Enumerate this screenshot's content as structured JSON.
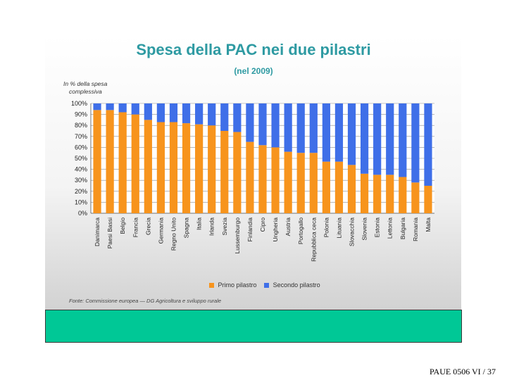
{
  "chart_data": {
    "type": "bar",
    "stacked": true,
    "title": "Spesa della PAC nei due pilastri",
    "subtitle": "(nel 2009)",
    "ylabel_lines": [
      "In % della spesa",
      "complessiva"
    ],
    "ylim": [
      0,
      100
    ],
    "yticks": [
      "0%",
      "10%",
      "20%",
      "30%",
      "40%",
      "50%",
      "60%",
      "70%",
      "80%",
      "90%",
      "100%"
    ],
    "categories": [
      "Danimarca",
      "Paesi Bassi",
      "Belgio",
      "Francia",
      "Grecia",
      "Germania",
      "Regno Unito",
      "Spagna",
      "Italia",
      "Irlanda",
      "Svezia",
      "Lussemburgo",
      "Finlandia",
      "Cipro",
      "Ungheria",
      "Austria",
      "Portogallo",
      "Repubblica ceca",
      "Polonia",
      "Lituania",
      "Slovacchia",
      "Slovenia",
      "Estonia",
      "Lettonia",
      "Bulgaria",
      "Romania",
      "Malta"
    ],
    "series": [
      {
        "name": "Primo pilastro",
        "color": "#f7941d",
        "values": [
          94,
          94,
          92,
          90,
          85,
          83,
          83,
          82,
          81,
          80,
          75,
          74,
          65,
          62,
          60,
          56,
          55,
          55,
          47,
          47,
          44,
          36,
          35,
          35,
          33,
          28,
          25
        ]
      },
      {
        "name": "Secondo pilastro",
        "color": "#3f6fe8",
        "values": [
          6,
          6,
          8,
          10,
          15,
          17,
          17,
          18,
          19,
          20,
          25,
          26,
          35,
          38,
          40,
          44,
          45,
          45,
          53,
          53,
          56,
          64,
          65,
          65,
          67,
          72,
          75
        ]
      }
    ],
    "grid": true,
    "legend_position": "bottom"
  },
  "source_note": "Fonte: Commissione europea — DG Agricoltura e sviluppo rurale",
  "footer": "PAUE 0506 VI / 37"
}
